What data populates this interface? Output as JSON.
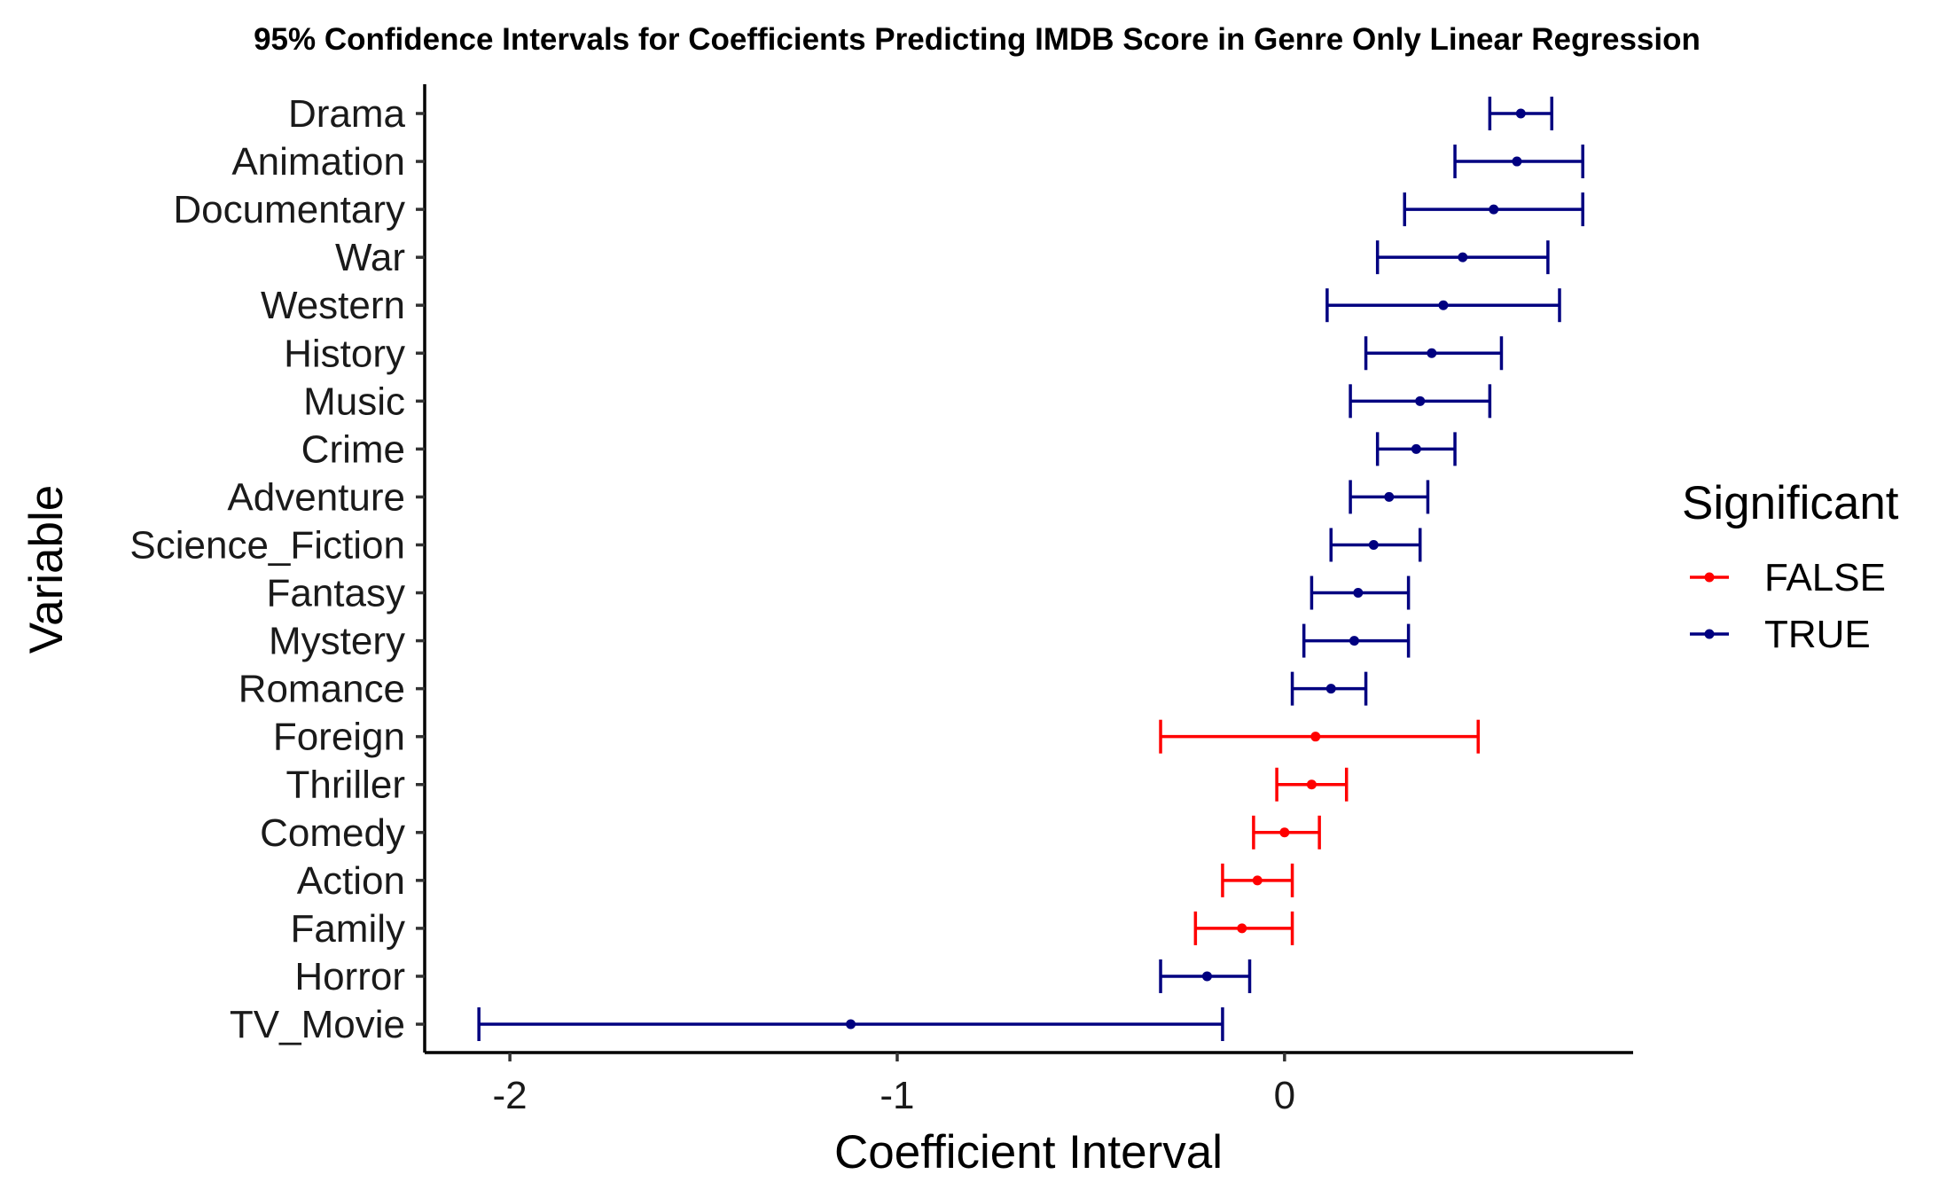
{
  "chart_data": {
    "type": "errorbar",
    "title": "95% Confidence Intervals for Coefficients Predicting IMDB Score in Genre Only Linear Regression",
    "xlabel": "Coefficient Interval",
    "ylabel": "Variable",
    "xlim": [
      -2.22,
      0.9
    ],
    "x_ticks": [
      -2,
      -1,
      0
    ],
    "x_tick_labels": [
      "-2",
      "-1",
      "0"
    ],
    "grid": false,
    "legend": {
      "title": "Significant",
      "position": "right",
      "entries": [
        {
          "label": "FALSE",
          "color": "#ff0000"
        },
        {
          "label": "TRUE",
          "color": "#000080"
        }
      ]
    },
    "colors": {
      "FALSE": "#ff0000",
      "TRUE": "#000080"
    },
    "rows": [
      {
        "variable": "Drama",
        "estimate": 0.61,
        "lower": 0.53,
        "upper": 0.69,
        "significant": "TRUE"
      },
      {
        "variable": "Animation",
        "estimate": 0.6,
        "lower": 0.44,
        "upper": 0.77,
        "significant": "TRUE"
      },
      {
        "variable": "Documentary",
        "estimate": 0.54,
        "lower": 0.31,
        "upper": 0.77,
        "significant": "TRUE"
      },
      {
        "variable": "War",
        "estimate": 0.46,
        "lower": 0.24,
        "upper": 0.68,
        "significant": "TRUE"
      },
      {
        "variable": "Western",
        "estimate": 0.41,
        "lower": 0.11,
        "upper": 0.71,
        "significant": "TRUE"
      },
      {
        "variable": "History",
        "estimate": 0.38,
        "lower": 0.21,
        "upper": 0.56,
        "significant": "TRUE"
      },
      {
        "variable": "Music",
        "estimate": 0.35,
        "lower": 0.17,
        "upper": 0.53,
        "significant": "TRUE"
      },
      {
        "variable": "Crime",
        "estimate": 0.34,
        "lower": 0.24,
        "upper": 0.44,
        "significant": "TRUE"
      },
      {
        "variable": "Adventure",
        "estimate": 0.27,
        "lower": 0.17,
        "upper": 0.37,
        "significant": "TRUE"
      },
      {
        "variable": "Science_Fiction",
        "estimate": 0.23,
        "lower": 0.12,
        "upper": 0.35,
        "significant": "TRUE"
      },
      {
        "variable": "Fantasy",
        "estimate": 0.19,
        "lower": 0.07,
        "upper": 0.32,
        "significant": "TRUE"
      },
      {
        "variable": "Mystery",
        "estimate": 0.18,
        "lower": 0.05,
        "upper": 0.32,
        "significant": "TRUE"
      },
      {
        "variable": "Romance",
        "estimate": 0.12,
        "lower": 0.02,
        "upper": 0.21,
        "significant": "TRUE"
      },
      {
        "variable": "Foreign",
        "estimate": 0.08,
        "lower": -0.32,
        "upper": 0.5,
        "significant": "FALSE"
      },
      {
        "variable": "Thriller",
        "estimate": 0.07,
        "lower": -0.02,
        "upper": 0.16,
        "significant": "FALSE"
      },
      {
        "variable": "Comedy",
        "estimate": 0.0,
        "lower": -0.08,
        "upper": 0.09,
        "significant": "FALSE"
      },
      {
        "variable": "Action",
        "estimate": -0.07,
        "lower": -0.16,
        "upper": 0.02,
        "significant": "FALSE"
      },
      {
        "variable": "Family",
        "estimate": -0.11,
        "lower": -0.23,
        "upper": 0.02,
        "significant": "FALSE"
      },
      {
        "variable": "Horror",
        "estimate": -0.2,
        "lower": -0.32,
        "upper": -0.09,
        "significant": "TRUE"
      },
      {
        "variable": "TV_Movie",
        "estimate": -1.12,
        "lower": -2.08,
        "upper": -0.16,
        "significant": "TRUE"
      }
    ]
  }
}
